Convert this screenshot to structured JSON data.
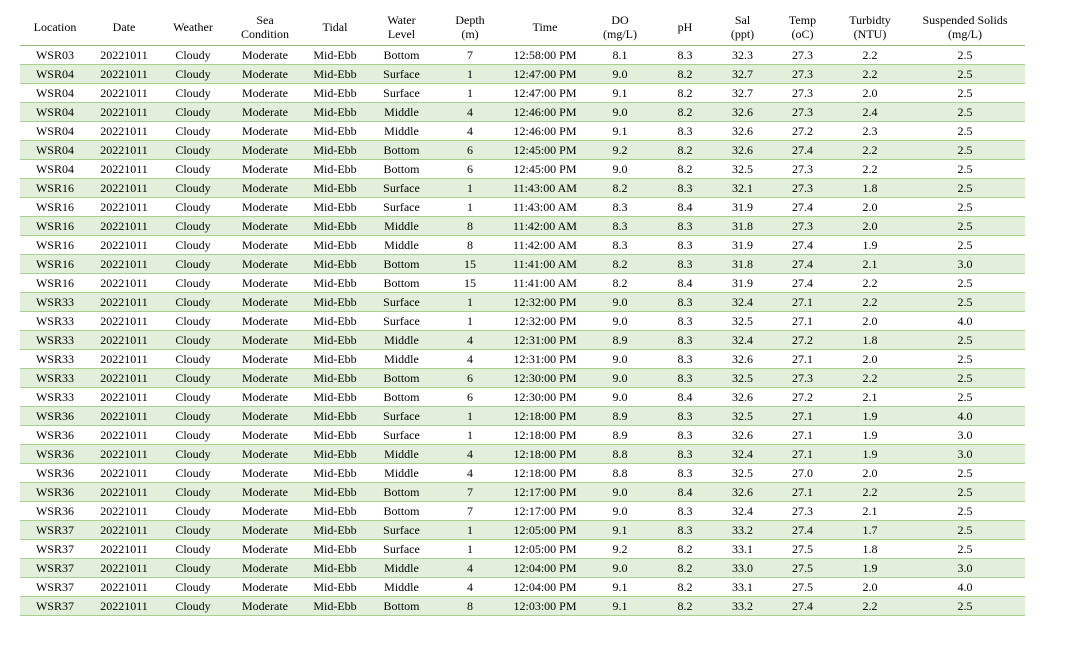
{
  "table": {
    "header": [
      "Location",
      "Date",
      "Weather",
      "Sea\nCondition",
      "Tidal",
      "Water\nLevel",
      "Depth\n(m)",
      "Time",
      "DO\n(mg/L)",
      "pH",
      "Sal\n(ppt)",
      "Temp\n(oC)",
      "Turbidty\n(NTU)",
      "Suspended Solids\n(mg/L)"
    ],
    "rows": [
      [
        "WSR03",
        "20221011",
        "Cloudy",
        "Moderate",
        "Mid-Ebb",
        "Bottom",
        "7",
        "12:58:00 PM",
        "8.1",
        "8.3",
        "32.3",
        "27.3",
        "2.2",
        "2.5"
      ],
      [
        "WSR04",
        "20221011",
        "Cloudy",
        "Moderate",
        "Mid-Ebb",
        "Surface",
        "1",
        "12:47:00 PM",
        "9.0",
        "8.2",
        "32.7",
        "27.3",
        "2.2",
        "2.5"
      ],
      [
        "WSR04",
        "20221011",
        "Cloudy",
        "Moderate",
        "Mid-Ebb",
        "Surface",
        "1",
        "12:47:00 PM",
        "9.1",
        "8.2",
        "32.7",
        "27.3",
        "2.0",
        "2.5"
      ],
      [
        "WSR04",
        "20221011",
        "Cloudy",
        "Moderate",
        "Mid-Ebb",
        "Middle",
        "4",
        "12:46:00 PM",
        "9.0",
        "8.2",
        "32.6",
        "27.3",
        "2.4",
        "2.5"
      ],
      [
        "WSR04",
        "20221011",
        "Cloudy",
        "Moderate",
        "Mid-Ebb",
        "Middle",
        "4",
        "12:46:00 PM",
        "9.1",
        "8.3",
        "32.6",
        "27.2",
        "2.3",
        "2.5"
      ],
      [
        "WSR04",
        "20221011",
        "Cloudy",
        "Moderate",
        "Mid-Ebb",
        "Bottom",
        "6",
        "12:45:00 PM",
        "9.2",
        "8.2",
        "32.6",
        "27.4",
        "2.2",
        "2.5"
      ],
      [
        "WSR04",
        "20221011",
        "Cloudy",
        "Moderate",
        "Mid-Ebb",
        "Bottom",
        "6",
        "12:45:00 PM",
        "9.0",
        "8.2",
        "32.5",
        "27.3",
        "2.2",
        "2.5"
      ],
      [
        "WSR16",
        "20221011",
        "Cloudy",
        "Moderate",
        "Mid-Ebb",
        "Surface",
        "1",
        "11:43:00 AM",
        "8.2",
        "8.3",
        "32.1",
        "27.3",
        "1.8",
        "2.5"
      ],
      [
        "WSR16",
        "20221011",
        "Cloudy",
        "Moderate",
        "Mid-Ebb",
        "Surface",
        "1",
        "11:43:00 AM",
        "8.3",
        "8.4",
        "31.9",
        "27.4",
        "2.0",
        "2.5"
      ],
      [
        "WSR16",
        "20221011",
        "Cloudy",
        "Moderate",
        "Mid-Ebb",
        "Middle",
        "8",
        "11:42:00 AM",
        "8.3",
        "8.3",
        "31.8",
        "27.3",
        "2.0",
        "2.5"
      ],
      [
        "WSR16",
        "20221011",
        "Cloudy",
        "Moderate",
        "Mid-Ebb",
        "Middle",
        "8",
        "11:42:00 AM",
        "8.3",
        "8.3",
        "31.9",
        "27.4",
        "1.9",
        "2.5"
      ],
      [
        "WSR16",
        "20221011",
        "Cloudy",
        "Moderate",
        "Mid-Ebb",
        "Bottom",
        "15",
        "11:41:00 AM",
        "8.2",
        "8.3",
        "31.8",
        "27.4",
        "2.1",
        "3.0"
      ],
      [
        "WSR16",
        "20221011",
        "Cloudy",
        "Moderate",
        "Mid-Ebb",
        "Bottom",
        "15",
        "11:41:00 AM",
        "8.2",
        "8.4",
        "31.9",
        "27.4",
        "2.2",
        "2.5"
      ],
      [
        "WSR33",
        "20221011",
        "Cloudy",
        "Moderate",
        "Mid-Ebb",
        "Surface",
        "1",
        "12:32:00 PM",
        "9.0",
        "8.3",
        "32.4",
        "27.1",
        "2.2",
        "2.5"
      ],
      [
        "WSR33",
        "20221011",
        "Cloudy",
        "Moderate",
        "Mid-Ebb",
        "Surface",
        "1",
        "12:32:00 PM",
        "9.0",
        "8.3",
        "32.5",
        "27.1",
        "2.0",
        "4.0"
      ],
      [
        "WSR33",
        "20221011",
        "Cloudy",
        "Moderate",
        "Mid-Ebb",
        "Middle",
        "4",
        "12:31:00 PM",
        "8.9",
        "8.3",
        "32.4",
        "27.2",
        "1.8",
        "2.5"
      ],
      [
        "WSR33",
        "20221011",
        "Cloudy",
        "Moderate",
        "Mid-Ebb",
        "Middle",
        "4",
        "12:31:00 PM",
        "9.0",
        "8.3",
        "32.6",
        "27.1",
        "2.0",
        "2.5"
      ],
      [
        "WSR33",
        "20221011",
        "Cloudy",
        "Moderate",
        "Mid-Ebb",
        "Bottom",
        "6",
        "12:30:00 PM",
        "9.0",
        "8.3",
        "32.5",
        "27.3",
        "2.2",
        "2.5"
      ],
      [
        "WSR33",
        "20221011",
        "Cloudy",
        "Moderate",
        "Mid-Ebb",
        "Bottom",
        "6",
        "12:30:00 PM",
        "9.0",
        "8.4",
        "32.6",
        "27.2",
        "2.1",
        "2.5"
      ],
      [
        "WSR36",
        "20221011",
        "Cloudy",
        "Moderate",
        "Mid-Ebb",
        "Surface",
        "1",
        "12:18:00 PM",
        "8.9",
        "8.3",
        "32.5",
        "27.1",
        "1.9",
        "4.0"
      ],
      [
        "WSR36",
        "20221011",
        "Cloudy",
        "Moderate",
        "Mid-Ebb",
        "Surface",
        "1",
        "12:18:00 PM",
        "8.9",
        "8.3",
        "32.6",
        "27.1",
        "1.9",
        "3.0"
      ],
      [
        "WSR36",
        "20221011",
        "Cloudy",
        "Moderate",
        "Mid-Ebb",
        "Middle",
        "4",
        "12:18:00 PM",
        "8.8",
        "8.3",
        "32.4",
        "27.1",
        "1.9",
        "3.0"
      ],
      [
        "WSR36",
        "20221011",
        "Cloudy",
        "Moderate",
        "Mid-Ebb",
        "Middle",
        "4",
        "12:18:00 PM",
        "8.8",
        "8.3",
        "32.5",
        "27.0",
        "2.0",
        "2.5"
      ],
      [
        "WSR36",
        "20221011",
        "Cloudy",
        "Moderate",
        "Mid-Ebb",
        "Bottom",
        "7",
        "12:17:00 PM",
        "9.0",
        "8.4",
        "32.6",
        "27.1",
        "2.2",
        "2.5"
      ],
      [
        "WSR36",
        "20221011",
        "Cloudy",
        "Moderate",
        "Mid-Ebb",
        "Bottom",
        "7",
        "12:17:00 PM",
        "9.0",
        "8.3",
        "32.4",
        "27.3",
        "2.1",
        "2.5"
      ],
      [
        "WSR37",
        "20221011",
        "Cloudy",
        "Moderate",
        "Mid-Ebb",
        "Surface",
        "1",
        "12:05:00 PM",
        "9.1",
        "8.3",
        "33.2",
        "27.4",
        "1.7",
        "2.5"
      ],
      [
        "WSR37",
        "20221011",
        "Cloudy",
        "Moderate",
        "Mid-Ebb",
        "Surface",
        "1",
        "12:05:00 PM",
        "9.2",
        "8.2",
        "33.1",
        "27.5",
        "1.8",
        "2.5"
      ],
      [
        "WSR37",
        "20221011",
        "Cloudy",
        "Moderate",
        "Mid-Ebb",
        "Middle",
        "4",
        "12:04:00 PM",
        "9.0",
        "8.2",
        "33.0",
        "27.5",
        "1.9",
        "3.0"
      ],
      [
        "WSR37",
        "20221011",
        "Cloudy",
        "Moderate",
        "Mid-Ebb",
        "Middle",
        "4",
        "12:04:00 PM",
        "9.1",
        "8.2",
        "33.1",
        "27.5",
        "2.0",
        "4.0"
      ],
      [
        "WSR37",
        "20221011",
        "Cloudy",
        "Moderate",
        "Mid-Ebb",
        "Bottom",
        "8",
        "12:03:00 PM",
        "9.1",
        "8.2",
        "33.2",
        "27.4",
        "2.2",
        "2.5"
      ]
    ]
  }
}
